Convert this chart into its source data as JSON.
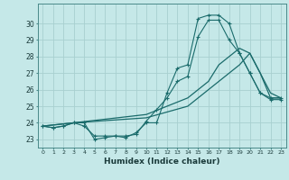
{
  "xlabel": "Humidex (Indice chaleur)",
  "background_color": "#c5e8e8",
  "grid_color": "#a8d0d0",
  "line_color": "#1a6b6b",
  "xlim": [
    -0.5,
    23.5
  ],
  "ylim": [
    22.5,
    31.2
  ],
  "yticks": [
    23,
    24,
    25,
    26,
    27,
    28,
    29,
    30
  ],
  "xticks": [
    0,
    1,
    2,
    3,
    4,
    5,
    6,
    7,
    8,
    9,
    10,
    11,
    12,
    13,
    14,
    15,
    16,
    17,
    18,
    19,
    20,
    21,
    22,
    23
  ],
  "line1_x": [
    0,
    1,
    2,
    3,
    4,
    5,
    6,
    7,
    8,
    9,
    10,
    11,
    12,
    13,
    14,
    15,
    16,
    17,
    18,
    19,
    20,
    21,
    22,
    23
  ],
  "line1_y": [
    23.8,
    23.7,
    23.8,
    24.0,
    24.0,
    23.0,
    23.1,
    23.2,
    23.1,
    23.4,
    24.0,
    24.0,
    25.8,
    27.3,
    27.5,
    30.3,
    30.5,
    30.5,
    30.0,
    28.2,
    27.0,
    25.8,
    25.5,
    25.5
  ],
  "line2_x": [
    0,
    1,
    2,
    3,
    4,
    5,
    6,
    7,
    8,
    9,
    10,
    11,
    12,
    13,
    14,
    15,
    16,
    17,
    18,
    19,
    20,
    21,
    22,
    23
  ],
  "line2_y": [
    23.8,
    23.7,
    23.8,
    24.0,
    23.8,
    23.2,
    23.2,
    23.2,
    23.2,
    23.3,
    24.1,
    24.8,
    25.5,
    26.5,
    26.8,
    29.2,
    30.2,
    30.2,
    29.0,
    28.2,
    27.0,
    25.8,
    25.4,
    25.4
  ],
  "line3_x": [
    0,
    3,
    10,
    14,
    16,
    17,
    18,
    19,
    20,
    21,
    22,
    23
  ],
  "line3_y": [
    23.8,
    24.0,
    24.5,
    25.5,
    26.5,
    27.5,
    28.0,
    28.5,
    28.2,
    27.0,
    25.5,
    25.5
  ],
  "line4_x": [
    0,
    3,
    10,
    14,
    16,
    17,
    18,
    19,
    20,
    21,
    22,
    23
  ],
  "line4_y": [
    23.8,
    24.0,
    24.3,
    25.0,
    26.0,
    26.5,
    27.0,
    27.5,
    28.2,
    27.0,
    25.8,
    25.5
  ]
}
